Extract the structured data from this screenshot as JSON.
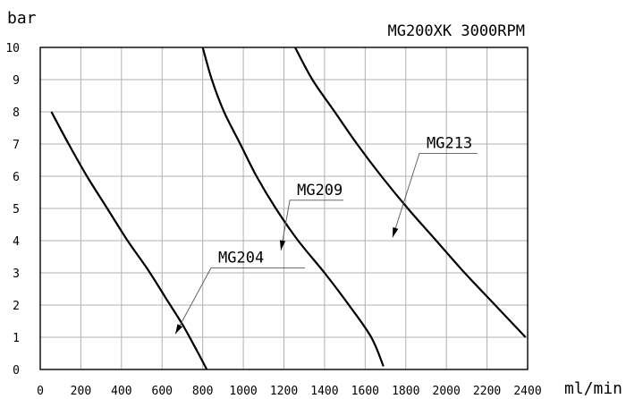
{
  "chart_data": {
    "type": "line",
    "title": "MG200XK 3000RPM",
    "xlabel": "ml/min",
    "ylabel": "bar",
    "xlim": [
      0,
      2400
    ],
    "ylim": [
      0,
      10
    ],
    "xticks": [
      0,
      200,
      400,
      600,
      800,
      1000,
      1200,
      1400,
      1600,
      1800,
      2000,
      2200,
      2400
    ],
    "yticks": [
      0,
      1,
      2,
      3,
      4,
      5,
      6,
      7,
      8,
      9,
      10
    ],
    "grid": true,
    "series": [
      {
        "name": "MG204",
        "x": [
          55,
          140,
          230,
          330,
          430,
          530,
          620,
          700,
          770,
          820
        ],
        "y": [
          8.0,
          7.0,
          6.0,
          5.0,
          4.0,
          3.1,
          2.2,
          1.4,
          0.6,
          0.0
        ],
        "annotation": {
          "x": 665,
          "y": 1.1
        }
      },
      {
        "name": "MG209",
        "x": [
          800,
          845,
          905,
          985,
          1065,
          1160,
          1270,
          1400,
          1520,
          1630,
          1690
        ],
        "y": [
          10.0,
          9.0,
          8.0,
          7.0,
          6.0,
          5.0,
          4.0,
          3.0,
          2.0,
          1.0,
          0.1
        ],
        "annotation": {
          "x": 1185,
          "y": 3.7
        }
      },
      {
        "name": "MG213",
        "x": [
          1255,
          1340,
          1450,
          1560,
          1680,
          1810,
          1950,
          2090,
          2240,
          2390
        ],
        "y": [
          10.0,
          9.0,
          8.0,
          7.0,
          6.0,
          5.0,
          4.0,
          3.0,
          2.0,
          1.0
        ],
        "annotation": {
          "x": 1735,
          "y": 4.1
        }
      }
    ]
  }
}
